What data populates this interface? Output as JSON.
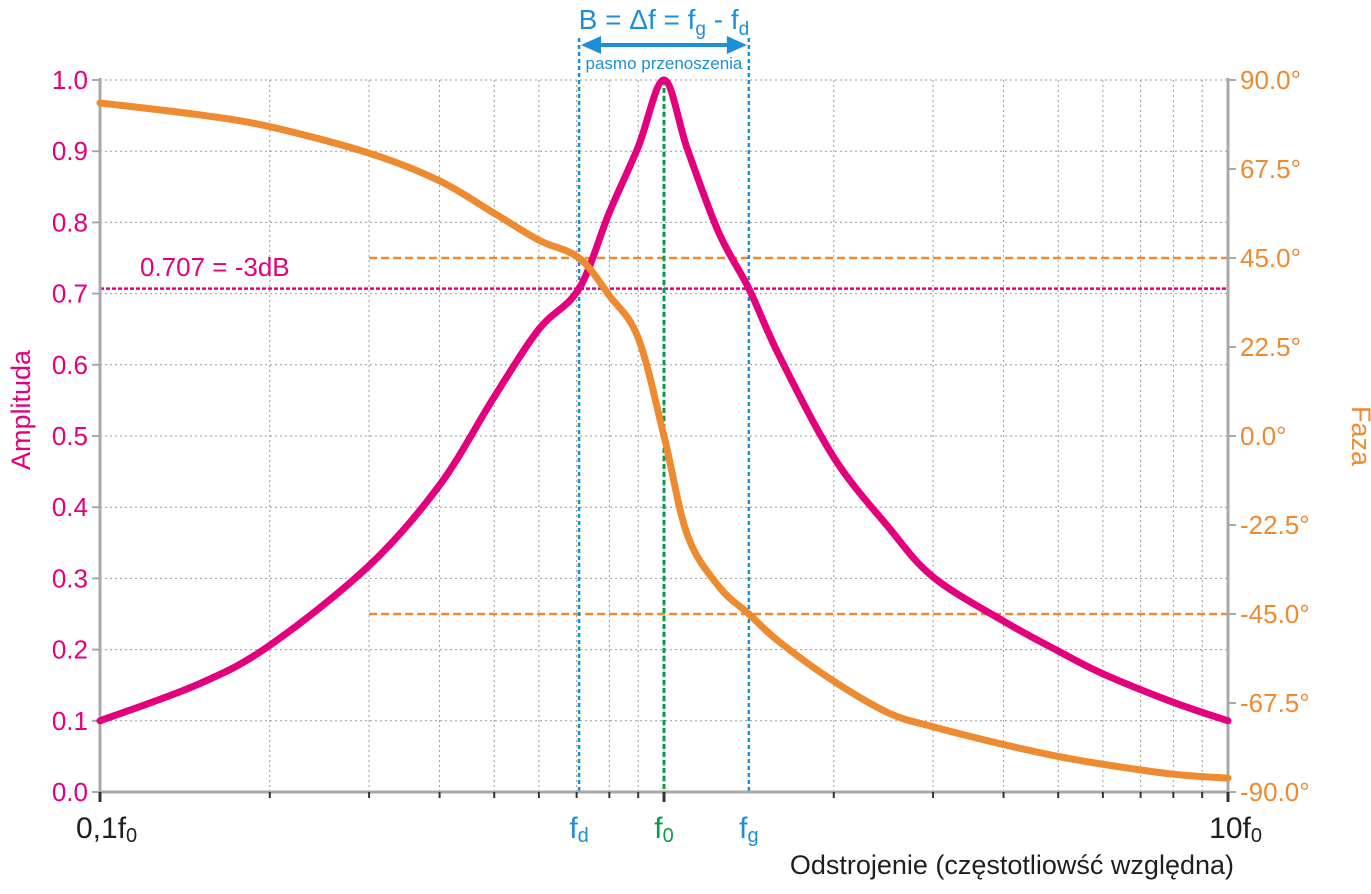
{
  "colors": {
    "amplitude": "#e4007d",
    "phase": "#ee8a30",
    "band": "#1d8fd6",
    "center": "#0e9a4a",
    "grid": "#9a9a9a",
    "axis": "#a9a9a9",
    "text": "#1f1f1f"
  },
  "chart_data": {
    "type": "line",
    "x_scale": "log",
    "x_unit": "f0",
    "xlim": [
      0.1,
      10
    ],
    "ylim_left": [
      0,
      1
    ],
    "ylim_right": [
      -90,
      90
    ],
    "grid": true,
    "xlabel": "Odstrojenie (częstotliowść względna)",
    "ylabel_left": "Amplituda",
    "ylabel_right": "Faza",
    "left_ticks": [
      "0.0",
      "0.1",
      "0.2",
      "0.3",
      "0.4",
      "0.5",
      "0.6",
      "0.7",
      "0.8",
      "0.9",
      "1.0"
    ],
    "left_tick_values": [
      0,
      0.1,
      0.2,
      0.3,
      0.4,
      0.5,
      0.6,
      0.7,
      0.8,
      0.9,
      1.0
    ],
    "right_ticks": [
      "-90.0°",
      "-67.5°",
      "-45.0°",
      "-22.5°",
      "0.0°",
      "22.5°",
      "45.0°",
      "67.5°",
      "90.0°"
    ],
    "right_tick_values": [
      -90,
      -67.5,
      -45,
      -22.5,
      0,
      22.5,
      45,
      67.5,
      90
    ],
    "x_end_labels": {
      "start": {
        "base": "0,1f",
        "sub": "0",
        "x": 0.1
      },
      "end": {
        "base": "10f",
        "sub": "0",
        "x": 10
      }
    },
    "markers": [
      {
        "id": "fd",
        "base": "f",
        "sub": "d",
        "x": 0.707
      },
      {
        "id": "f0",
        "base": "f",
        "sub": "0",
        "x": 1.0
      },
      {
        "id": "fg",
        "base": "f",
        "sub": "g",
        "x": 1.414
      }
    ],
    "bandwidth": {
      "title_parts": [
        "B = ",
        "Δ",
        "f = f",
        "g",
        " - f",
        "d"
      ],
      "subtitle": "pasmo przenoszenia"
    },
    "ref_line_amplitude": {
      "value": 0.707,
      "label": "0.707 = -3dB"
    },
    "ref_lines_phase": [
      {
        "value": 45,
        "x_start": 0.3
      },
      {
        "value": -45,
        "x_start": 0.3
      }
    ],
    "series": [
      {
        "name": "Amplituda",
        "axis": "left",
        "x": [
          0.1,
          0.15,
          0.2,
          0.3,
          0.4,
          0.5,
          0.6,
          0.707,
          0.8,
          0.9,
          1.0,
          1.1,
          1.25,
          1.414,
          1.6,
          2.0,
          2.5,
          3,
          4,
          5,
          6,
          8,
          10
        ],
        "y": [
          0.1,
          0.152,
          0.206,
          0.318,
          0.431,
          0.555,
          0.65,
          0.707,
          0.814,
          0.906,
          1.0,
          0.903,
          0.786,
          0.707,
          0.613,
          0.47,
          0.372,
          0.302,
          0.24,
          0.198,
          0.166,
          0.126,
          0.1
        ]
      },
      {
        "name": "Faza",
        "axis": "right",
        "x": [
          0.1,
          0.15,
          0.2,
          0.3,
          0.4,
          0.5,
          0.6,
          0.707,
          0.8,
          0.9,
          1.0,
          1.1,
          1.25,
          1.414,
          1.6,
          2.0,
          2.5,
          3,
          4,
          5,
          6,
          8,
          10
        ],
        "y": [
          84.2,
          81.2,
          78.2,
          71.5,
          64.5,
          56.3,
          49.5,
          45.0,
          35.5,
          24.8,
          0.0,
          -25.0,
          -38.0,
          -45.0,
          -52.0,
          -62.0,
          -70.0,
          -73.5,
          -78.0,
          -81.0,
          -83.0,
          -85.5,
          -86.5
        ]
      }
    ]
  }
}
